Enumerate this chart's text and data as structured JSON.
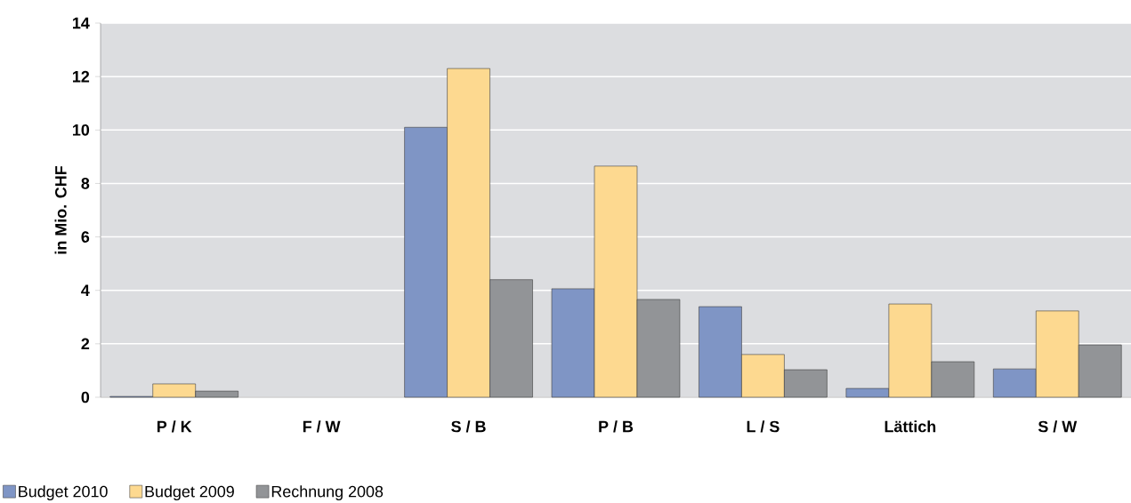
{
  "chart_data": {
    "type": "bar",
    "ylabel": "in Mio. CHF",
    "categories": [
      "P / K",
      "F / W",
      "S / B",
      "P / B",
      "L / S",
      "Lättich",
      "S / W"
    ],
    "series": [
      {
        "name": "Budget 2010",
        "color": "#7f95c5",
        "values": [
          0.03,
          null,
          10.1,
          4.06,
          3.39,
          0.33,
          1.06
        ]
      },
      {
        "name": "Budget 2009",
        "color": "#fdd990",
        "values": [
          0.5,
          null,
          12.3,
          8.65,
          1.6,
          3.49,
          3.23
        ]
      },
      {
        "name": "Rechnung 2008",
        "color": "#929497",
        "values": [
          0.23,
          null,
          4.4,
          3.66,
          1.03,
          1.33,
          1.96
        ]
      }
    ],
    "ylim": [
      0,
      14
    ],
    "yticks": [
      0,
      2,
      4,
      6,
      8,
      10,
      12,
      14
    ],
    "grid": "y",
    "legend": "bottom left"
  }
}
